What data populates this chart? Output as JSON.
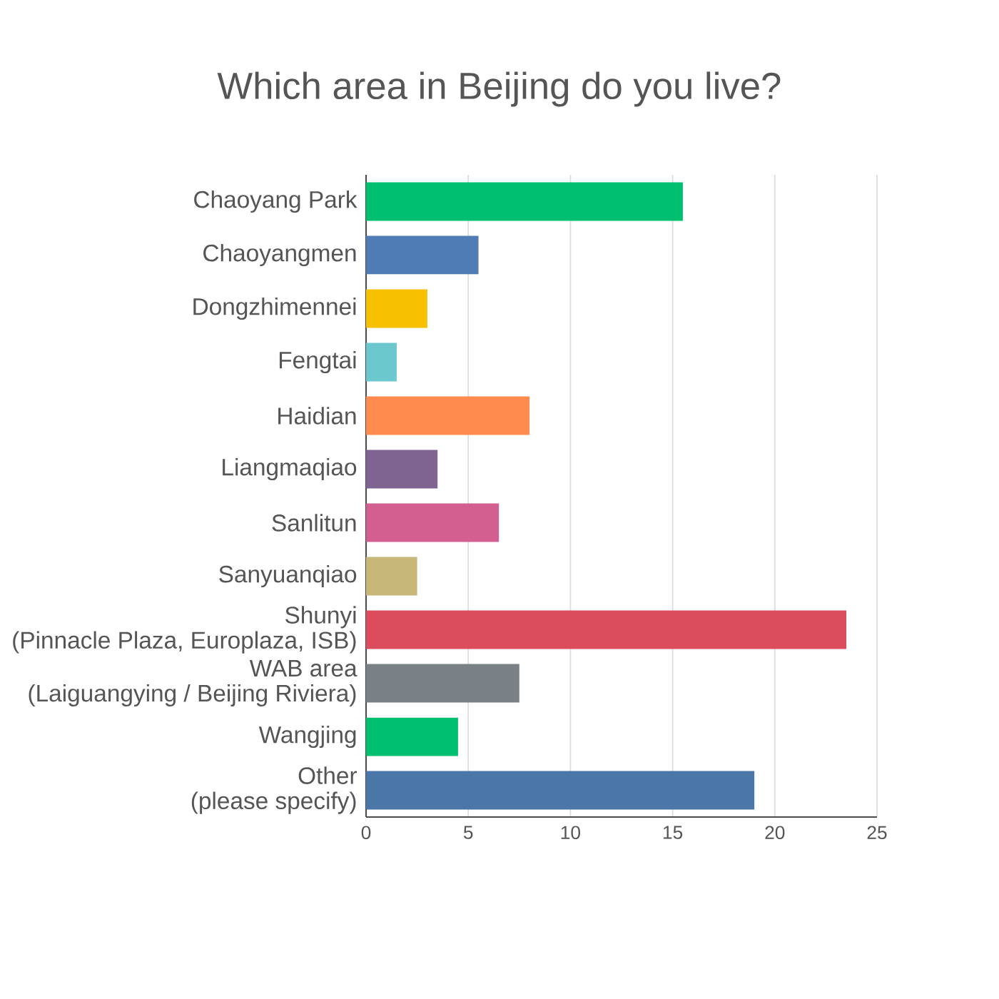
{
  "chart_data": {
    "type": "bar",
    "orientation": "horizontal",
    "title": "Which area in Beijing do you live?",
    "categories": [
      "Chaoyang Park",
      "Chaoyangmen",
      "Dongzhimennei",
      "Fengtai",
      "Haidian",
      "Liangmaqiao",
      "Sanlitun",
      "Sanyuanqiao",
      "Shunyi\n(Pinnacle Plaza, Europlaza, ISB)",
      "WAB area\n(Laiguangying / Beijing Riviera)",
      "Wangjing",
      "Other\n(please specify)"
    ],
    "values": [
      15.5,
      5.5,
      3,
      1.5,
      8,
      3.5,
      6.5,
      2.5,
      23.5,
      7.5,
      4.5,
      19
    ],
    "colors": [
      "#00bf6f",
      "#507cb6",
      "#f7c000",
      "#6bc8cd",
      "#ff8b4f",
      "#7f6391",
      "#d25f90",
      "#c7b879",
      "#db4d5c",
      "#798186",
      "#00bf6f",
      "#4a76a8"
    ],
    "xlim": [
      0,
      25
    ],
    "xticks": [
      0,
      5,
      10,
      15,
      20,
      25
    ],
    "grid": "x"
  }
}
